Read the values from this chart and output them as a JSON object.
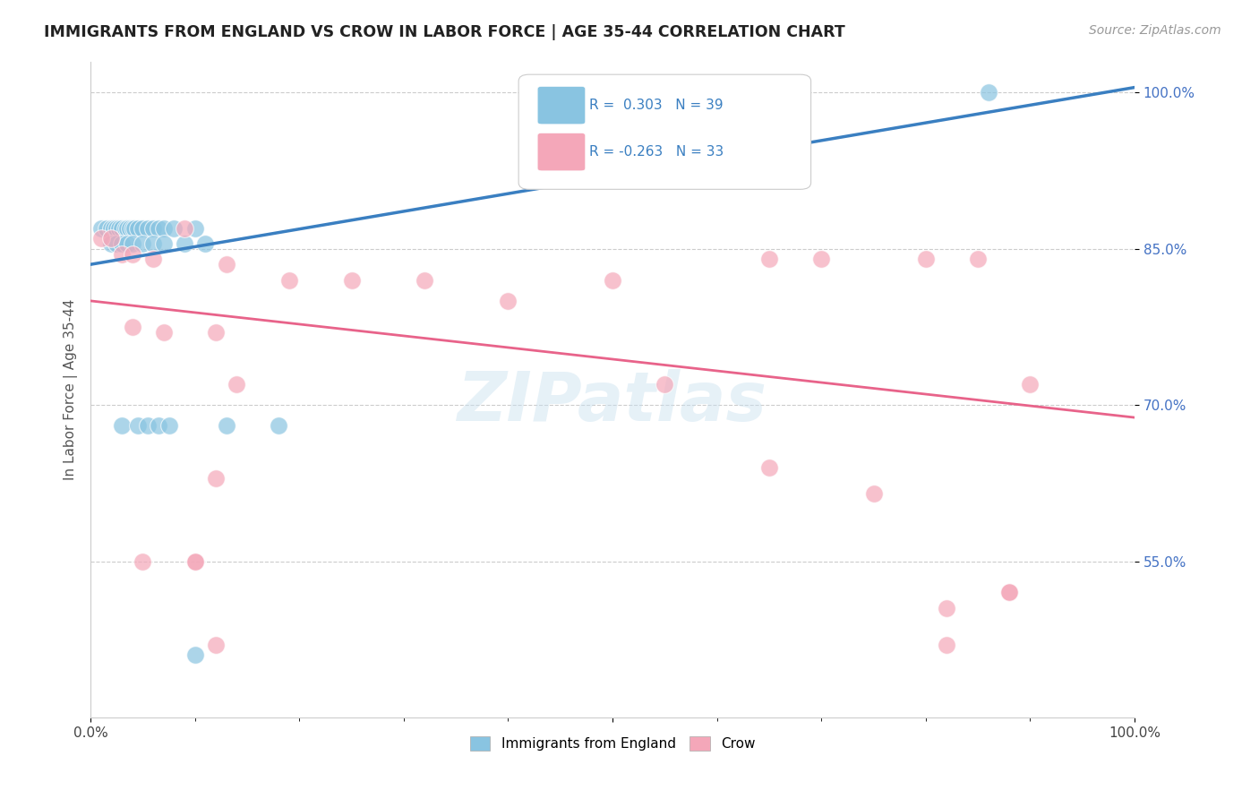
{
  "title": "IMMIGRANTS FROM ENGLAND VS CROW IN LABOR FORCE | AGE 35-44 CORRELATION CHART",
  "source": "Source: ZipAtlas.com",
  "ylabel": "In Labor Force | Age 35-44",
  "xlim": [
    0.0,
    1.0
  ],
  "ylim": [
    0.4,
    1.03
  ],
  "blue_R": 0.303,
  "blue_N": 39,
  "pink_R": -0.263,
  "pink_N": 33,
  "blue_color": "#89c4e1",
  "pink_color": "#f4a7b9",
  "blue_line_color": "#3a7fc1",
  "pink_line_color": "#e8638a",
  "watermark": "ZIPatlas",
  "blue_line_x0": 0.0,
  "blue_line_y0": 0.835,
  "blue_line_x1": 1.0,
  "blue_line_y1": 1.005,
  "pink_line_x0": 0.0,
  "pink_line_y0": 0.8,
  "pink_line_x1": 1.0,
  "pink_line_y1": 0.688,
  "blue_scatter_x": [
    0.01,
    0.015,
    0.02,
    0.022,
    0.025,
    0.027,
    0.03,
    0.033,
    0.035,
    0.038,
    0.04,
    0.042,
    0.045,
    0.05,
    0.055,
    0.06,
    0.065,
    0.07,
    0.08,
    0.1,
    0.02,
    0.025,
    0.03,
    0.035,
    0.04,
    0.05,
    0.06,
    0.07,
    0.09,
    0.11,
    0.03,
    0.045,
    0.055,
    0.065,
    0.075,
    0.13,
    0.18,
    0.86,
    0.1
  ],
  "blue_scatter_y": [
    0.87,
    0.87,
    0.87,
    0.87,
    0.87,
    0.87,
    0.87,
    0.87,
    0.87,
    0.87,
    0.87,
    0.87,
    0.87,
    0.87,
    0.87,
    0.87,
    0.87,
    0.87,
    0.87,
    0.87,
    0.855,
    0.855,
    0.855,
    0.855,
    0.855,
    0.855,
    0.855,
    0.855,
    0.855,
    0.855,
    0.68,
    0.68,
    0.68,
    0.68,
    0.68,
    0.68,
    0.68,
    1.0,
    0.46
  ],
  "pink_scatter_x": [
    0.01,
    0.02,
    0.03,
    0.04,
    0.06,
    0.09,
    0.13,
    0.19,
    0.25,
    0.32,
    0.4,
    0.5,
    0.65,
    0.7,
    0.8,
    0.85,
    0.9,
    0.04,
    0.07,
    0.12,
    0.05,
    0.1,
    0.14,
    0.55,
    0.65,
    0.12,
    0.12,
    0.82,
    0.88,
    0.75,
    0.82,
    0.88,
    0.1
  ],
  "pink_scatter_y": [
    0.86,
    0.86,
    0.845,
    0.845,
    0.84,
    0.87,
    0.835,
    0.82,
    0.82,
    0.82,
    0.8,
    0.82,
    0.84,
    0.84,
    0.84,
    0.84,
    0.72,
    0.775,
    0.77,
    0.77,
    0.55,
    0.55,
    0.72,
    0.72,
    0.64,
    0.63,
    0.47,
    0.505,
    0.52,
    0.615,
    0.47,
    0.52,
    0.55
  ]
}
